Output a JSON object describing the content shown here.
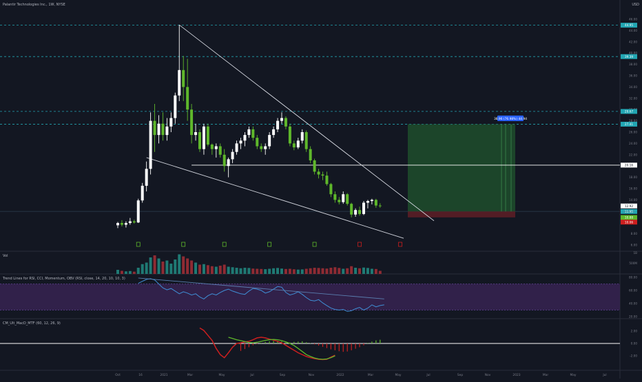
{
  "header": {
    "symbol": "Palantir Technologies Inc., 1W, NYSE",
    "currency": "USD"
  },
  "colors": {
    "background": "#131722",
    "up": "#ffffff",
    "down": "#5fb82b",
    "vol_up": "#1f7a74",
    "vol_down": "#8f2b33",
    "target_zone": "#1e4d2b",
    "stop_zone": "#5b1e26",
    "level_line": "#22a6b3",
    "rsi_band": "#35224f",
    "rsi_line": "#3f8fd6",
    "macd_green": "#5fb82b",
    "macd_red": "#cc1f1f"
  },
  "price_axis": {
    "ticks": [
      "46.00",
      "44.00",
      "42.00",
      "40.00",
      "38.00",
      "36.00",
      "34.00",
      "32.00",
      "30.00",
      "28.00",
      "26.00",
      "24.00",
      "22.00",
      "20.00",
      "18.00",
      "16.00",
      "14.00",
      "12.00",
      "10.00",
      "8.00",
      "6.00"
    ],
    "labels": [
      {
        "text": "44.95",
        "value": 44.95,
        "color": "#22a6b3"
      },
      {
        "text": "39.39",
        "value": 39.39,
        "color": "#22a6b3"
      },
      {
        "text": "29.67",
        "value": 29.67,
        "color": "#22a6b3"
      },
      {
        "text": "27.41",
        "value": 27.41,
        "color": "#22a6b3"
      },
      {
        "text": "20.16",
        "value": 20.16,
        "color": "#ffffff"
      },
      {
        "text": "12.92",
        "value": 12.92,
        "color": "#131722"
      },
      {
        "text": "11.95",
        "value": 11.95,
        "color": "#22a6b3"
      },
      {
        "text": "10.88",
        "value": 10.88,
        "color": "#5fb82b"
      },
      {
        "text": "10.06",
        "value": 10.06,
        "color": "#cc1f1f"
      }
    ],
    "countdown": "13:52:17"
  },
  "chart_data": [
    {
      "type": "candlestick",
      "title": "Palantir Technologies Inc., 1W, NYSE",
      "ylim": [
        6,
        46
      ],
      "x_ticks": [
        "Oct",
        "16",
        "2021",
        "Mar",
        "May",
        "Jul",
        "Sep",
        "Nov",
        "2022",
        "Mar",
        "May",
        "Jul",
        "Sep",
        "Nov",
        "2023",
        "Mar",
        "May",
        "Jul"
      ],
      "ohlc": [
        [
          9.5,
          10.1,
          9.0,
          9.9
        ],
        [
          9.9,
          10.4,
          9.3,
          9.6
        ],
        [
          9.6,
          10.2,
          9.1,
          9.9
        ],
        [
          9.9,
          10.8,
          9.6,
          10.2
        ],
        [
          10.2,
          10.5,
          9.8,
          10.0
        ],
        [
          10.0,
          14.2,
          9.9,
          13.9
        ],
        [
          13.9,
          17.0,
          13.5,
          16.5
        ],
        [
          16.5,
          20.8,
          15.5,
          19.5
        ],
        [
          19.5,
          29.5,
          18.5,
          28.0
        ],
        [
          28.0,
          31.0,
          22.5,
          25.5
        ],
        [
          25.5,
          29.0,
          24.0,
          27.5
        ],
        [
          27.5,
          29.5,
          24.5,
          25.5
        ],
        [
          25.5,
          28.5,
          24.5,
          27.0
        ],
        [
          27.0,
          29.5,
          26.0,
          28.5
        ],
        [
          28.5,
          33.0,
          27.5,
          32.5
        ],
        [
          32.5,
          45.0,
          31.5,
          37.0
        ],
        [
          37.0,
          39.5,
          31.5,
          34.0
        ],
        [
          34.0,
          39.0,
          28.0,
          30.0
        ],
        [
          30.0,
          31.0,
          24.0,
          25.5
        ],
        [
          25.5,
          27.5,
          24.5,
          26.0
        ],
        [
          26.0,
          26.5,
          22.5,
          23.0
        ],
        [
          23.0,
          27.5,
          22.0,
          27.0
        ],
        [
          27.0,
          27.5,
          23.5,
          23.8
        ],
        [
          23.8,
          24.0,
          22.0,
          23.0
        ],
        [
          23.0,
          24.0,
          21.5,
          23.5
        ],
        [
          23.5,
          24.0,
          21.5,
          22.0
        ],
        [
          22.0,
          23.0,
          19.0,
          20.0
        ],
        [
          20.0,
          21.5,
          18.0,
          21.2
        ],
        [
          21.2,
          23.0,
          20.5,
          22.5
        ],
        [
          22.5,
          24.5,
          22.0,
          24.0
        ],
        [
          24.0,
          25.0,
          23.0,
          24.5
        ],
        [
          24.5,
          26.0,
          23.5,
          25.5
        ],
        [
          25.5,
          27.0,
          25.0,
          26.5
        ],
        [
          26.5,
          27.0,
          24.5,
          25.0
        ],
        [
          25.0,
          25.5,
          23.0,
          23.5
        ],
        [
          23.5,
          24.0,
          22.5,
          23.0
        ],
        [
          23.0,
          24.0,
          22.0,
          23.5
        ],
        [
          23.5,
          26.0,
          23.0,
          25.5
        ],
        [
          25.5,
          27.0,
          25.0,
          26.5
        ],
        [
          26.5,
          28.5,
          26.0,
          28.0
        ],
        [
          28.0,
          29.5,
          27.5,
          28.5
        ],
        [
          28.5,
          28.8,
          26.5,
          27.0
        ],
        [
          27.0,
          27.5,
          23.5,
          24.0
        ],
        [
          24.0,
          24.5,
          22.8,
          23.3
        ],
        [
          23.3,
          25.0,
          23.0,
          24.5
        ],
        [
          24.5,
          26.5,
          24.0,
          26.0
        ],
        [
          26.0,
          26.3,
          22.5,
          23.0
        ],
        [
          23.0,
          23.5,
          20.5,
          21.0
        ],
        [
          21.0,
          21.3,
          18.5,
          19.0
        ],
        [
          19.0,
          19.5,
          17.8,
          18.5
        ],
        [
          18.5,
          19.0,
          17.5,
          18.3
        ],
        [
          18.3,
          19.0,
          16.5,
          16.8
        ],
        [
          16.8,
          17.0,
          14.5,
          15.0
        ],
        [
          15.0,
          15.5,
          13.5,
          14.0
        ],
        [
          14.0,
          14.5,
          13.2,
          13.6
        ],
        [
          13.6,
          15.5,
          13.3,
          15.0
        ],
        [
          15.0,
          15.2,
          13.0,
          13.3
        ],
        [
          13.3,
          13.5,
          10.9,
          11.4
        ],
        [
          11.4,
          12.5,
          11.0,
          12.2
        ],
        [
          12.2,
          12.8,
          11.2,
          11.5
        ],
        [
          11.5,
          13.8,
          11.3,
          13.5
        ],
        [
          13.5,
          14.0,
          12.5,
          13.8
        ],
        [
          13.8,
          14.2,
          13.2,
          14.0
        ],
        [
          14.0,
          14.2,
          12.6,
          13.0
        ],
        [
          13.0,
          13.4,
          12.6,
          12.9
        ]
      ]
    },
    {
      "type": "bar",
      "title": "Vol",
      "y_ticks": [
        "1B",
        "500M"
      ],
      "values": [
        40,
        30,
        25,
        28,
        22,
        60,
        95,
        110,
        160,
        180,
        150,
        120,
        130,
        100,
        140,
        190,
        170,
        150,
        130,
        110,
        90,
        95,
        85,
        75,
        70,
        80,
        90,
        70,
        65,
        60,
        55,
        60,
        58,
        52,
        50,
        48,
        46,
        50,
        55,
        58,
        52,
        48,
        50,
        45,
        42,
        44,
        50,
        55,
        60,
        58,
        55,
        52,
        60,
        65,
        58,
        50,
        55,
        75,
        60,
        55,
        62,
        58,
        50,
        48,
        30
      ]
    },
    {
      "type": "line",
      "title": "Trend Lines for RSI, CCI, Momentum, OBV (RSI, close, 14, 20, 10, 10, 3)",
      "ylim": [
        20,
        80
      ],
      "y_ticks": [
        "80.00",
        "60.00",
        "40.00",
        "20.00"
      ],
      "band": [
        30,
        70
      ],
      "values": [
        71,
        74,
        77,
        78,
        76,
        70,
        64,
        61,
        63,
        59,
        55,
        58,
        56,
        53,
        55,
        50,
        47,
        52,
        55,
        53,
        57,
        60,
        62,
        59,
        57,
        55,
        54,
        59,
        63,
        62,
        60,
        56,
        58,
        62,
        66,
        65,
        57,
        53,
        55,
        58,
        54,
        49,
        45,
        44,
        46,
        41,
        37,
        33,
        31,
        30,
        31,
        28,
        29,
        32,
        34,
        30,
        33,
        38,
        35,
        37,
        38
      ]
    },
    {
      "type": "histogram+line",
      "title": "CM_Ult_MacD_MTF (60, 12, 26, 9)",
      "y_ticks": [
        "2.00",
        "0.00",
        "-2.00"
      ],
      "histogram": [
        -1.2,
        -0.9,
        -0.6,
        -0.3,
        -0.1,
        0.1,
        0.25,
        0.35,
        0.4,
        0.45,
        0.35,
        0.2,
        0.15,
        0.25,
        0.3,
        0.35,
        0.2,
        0.05,
        -0.15,
        -0.35,
        -0.55,
        -0.75,
        -0.95,
        -1.1,
        -1.25,
        -1.35,
        -1.3,
        -1.1,
        -0.85,
        -0.6,
        -0.3,
        0.1,
        0.3,
        0.5,
        0.6
      ],
      "macd_line": [
        2.5,
        2.1,
        1.3,
        0.5,
        -0.8,
        -1.8,
        -2.3,
        -1.5,
        -0.6,
        0.0,
        0.1,
        0.25,
        0.35,
        0.6,
        0.9,
        1.0,
        0.9,
        0.7,
        0.55,
        0.35,
        0.1,
        -0.3,
        -0.7,
        -1.1,
        -1.5,
        -1.8,
        -2.1,
        -2.3,
        -2.45,
        -2.55,
        -2.6,
        -2.55,
        -2.2,
        -1.9
      ],
      "signal_line": [
        1.0,
        0.8,
        0.6,
        0.45,
        0.3,
        0.15,
        0.1,
        0.2,
        0.35,
        0.5,
        0.6,
        0.65,
        0.6,
        0.45,
        0.25,
        0.0,
        -0.35,
        -0.8,
        -1.3,
        -1.8,
        -2.1,
        -2.35,
        -2.5,
        -2.55,
        -2.5,
        -2.3,
        -2.0
      ]
    }
  ],
  "annotations": {
    "position_label": "38.96 (76.98%) 44.94"
  }
}
